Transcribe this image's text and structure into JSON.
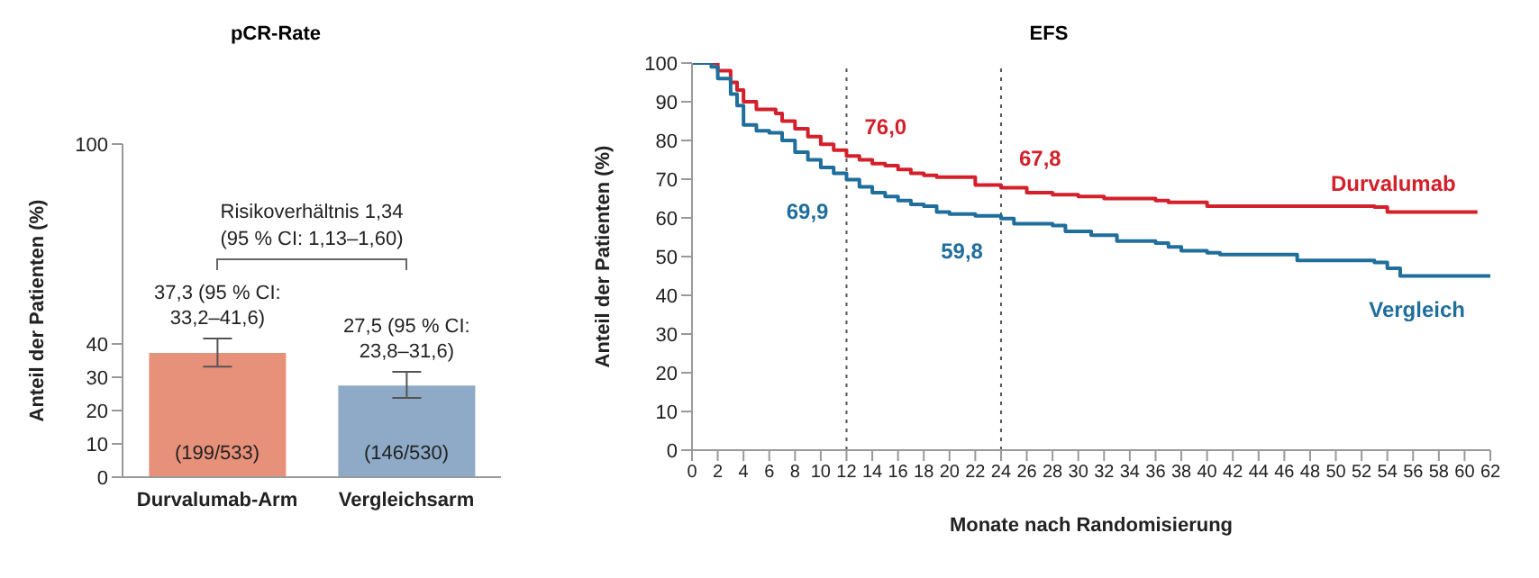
{
  "chart_data": [
    {
      "type": "bar",
      "title": "pCR-Rate",
      "ylabel": "Anteil der Patienten (%)",
      "categories": [
        "Durvalumab-Arm",
        "Vergleichsarm"
      ],
      "values": [
        37.3,
        27.5
      ],
      "colors": [
        "#e8917a",
        "#8eaac7"
      ],
      "errors": [
        [
          33.2,
          41.6
        ],
        [
          23.8,
          31.6
        ]
      ],
      "value_labels": [
        "37,3 (95 % CI:\n33,2–41,6)",
        "27,5 (95 % CI:\n23,8–31,6)"
      ],
      "ylim": [
        0,
        100
      ],
      "yticks": [
        0,
        10,
        20,
        30,
        40,
        100
      ],
      "annotations": [
        "Risikoverhältnis 1,34\n(95 % CI: 1,13–1,60)",
        "(199/533)",
        "(146/530)"
      ],
      "grid": false,
      "legend": false
    },
    {
      "type": "step",
      "title": "EFS",
      "xlabel": "Monate nach Randomisierung",
      "ylabel": "Anteil der Patienten (%)",
      "series": [
        {
          "name": "Durvalumab",
          "color": "#d3202a",
          "x": [
            0,
            1,
            2,
            3,
            3.5,
            4,
            5,
            6.5,
            7,
            8,
            9,
            10,
            11,
            12,
            13,
            14,
            15,
            16,
            17,
            18,
            19,
            21,
            22,
            24,
            26,
            28,
            30,
            32,
            36,
            37,
            40,
            44,
            53,
            54,
            61
          ],
          "values": [
            100,
            100,
            98,
            95,
            93,
            90,
            88,
            87,
            85,
            83,
            81,
            79,
            77.5,
            76,
            75,
            74,
            73.5,
            72.5,
            71.5,
            71,
            70.5,
            70.5,
            68.5,
            67.8,
            66.5,
            66,
            65.5,
            65,
            64.5,
            64,
            63,
            63,
            62.8,
            61.5,
            61.5
          ]
        },
        {
          "name": "Vergleich",
          "color": "#1f6e9c",
          "x": [
            0,
            1.5,
            2,
            3,
            3.5,
            4,
            5,
            6,
            7,
            8,
            9,
            10,
            11,
            12,
            13,
            14,
            15,
            16,
            17,
            18,
            19,
            20,
            22,
            24,
            25,
            28,
            29,
            31,
            33,
            36,
            37,
            38,
            40,
            41,
            46,
            47,
            53,
            54,
            55,
            62
          ],
          "values": [
            100,
            99,
            96,
            92,
            89,
            84,
            82.5,
            82,
            80,
            77,
            75,
            73,
            71.5,
            69.9,
            68,
            66.5,
            65.5,
            64.5,
            63.5,
            63,
            61.5,
            61,
            60.5,
            59.8,
            58.5,
            58,
            56.5,
            55.5,
            54,
            53.5,
            52.5,
            51.5,
            51,
            50.5,
            50.5,
            49,
            48.5,
            47,
            45,
            45
          ]
        }
      ],
      "xlim": [
        0,
        62
      ],
      "xticks": [
        0,
        2,
        4,
        6,
        8,
        10,
        12,
        14,
        16,
        18,
        20,
        22,
        24,
        26,
        28,
        30,
        32,
        34,
        36,
        38,
        40,
        42,
        44,
        46,
        48,
        50,
        52,
        54,
        56,
        58,
        60,
        62
      ],
      "ylim": [
        0,
        100
      ],
      "yticks": [
        0,
        10,
        20,
        30,
        40,
        50,
        60,
        70,
        80,
        90,
        100
      ],
      "ref_lines": [
        {
          "axis": "x",
          "value": 12,
          "line_style": "dotted",
          "color": "#555555"
        },
        {
          "axis": "x",
          "value": 24,
          "line_style": "dotted",
          "color": "#555555"
        }
      ],
      "annotations": [
        "76,0",
        "69,9",
        "67,8",
        "59,8"
      ],
      "grid": false,
      "legend": false,
      "marker": "none",
      "line_style": "solid"
    }
  ]
}
